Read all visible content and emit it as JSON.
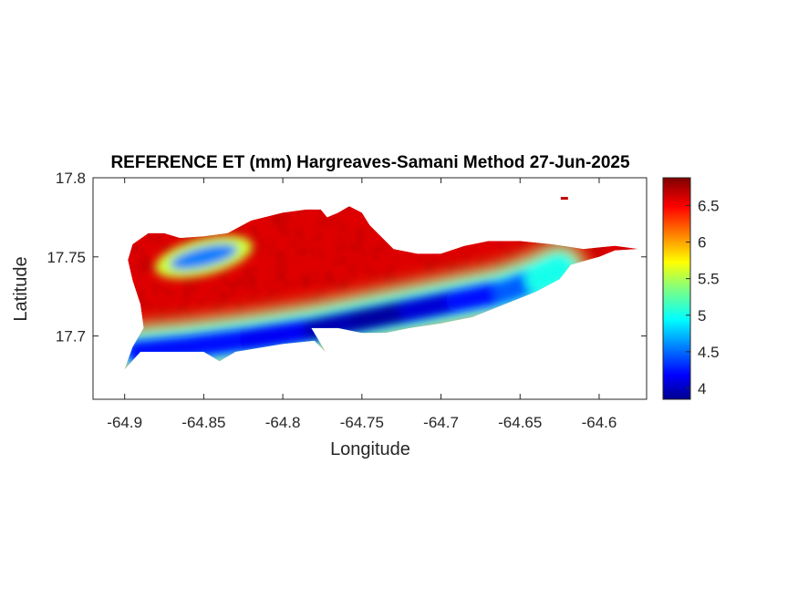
{
  "chart_data": {
    "type": "heatmap",
    "title": "REFERENCE ET (mm) Hargreaves-Samani Method  27-Jun-2025",
    "xlabel": "Longitude",
    "ylabel": "Latitude",
    "xlim": [
      -64.92,
      -64.57
    ],
    "ylim": [
      17.66,
      17.8
    ],
    "xticks": [
      -64.9,
      -64.85,
      -64.8,
      -64.75,
      -64.7,
      -64.65,
      -64.6
    ],
    "xtick_labels": [
      "-64.9",
      "-64.85",
      "-64.8",
      "-64.75",
      "-64.7",
      "-64.65",
      "-64.6"
    ],
    "yticks": [
      17.7,
      17.75,
      17.8
    ],
    "ytick_labels": [
      "17.7",
      "17.75",
      "17.8"
    ],
    "colorbar": {
      "colormap": "jet",
      "clim": [
        3.85,
        6.88
      ],
      "ticks": [
        4,
        4.5,
        5,
        5.5,
        6,
        6.5
      ],
      "tick_labels": [
        "4",
        "4.5",
        "5",
        "5.5",
        "6",
        "6.5"
      ]
    },
    "field": {
      "description_units": "mm",
      "island_outline_lonlat": [
        [
          -64.9,
          17.679
        ],
        [
          -64.89,
          17.69
        ],
        [
          -64.875,
          17.69
        ],
        [
          -64.85,
          17.69
        ],
        [
          -64.84,
          17.684
        ],
        [
          -64.83,
          17.69
        ],
        [
          -64.8,
          17.695
        ],
        [
          -64.78,
          17.697
        ],
        [
          -64.773,
          17.69
        ],
        [
          -64.782,
          17.705
        ],
        [
          -64.765,
          17.705
        ],
        [
          -64.75,
          17.702
        ],
        [
          -64.735,
          17.702
        ],
        [
          -64.72,
          17.705
        ],
        [
          -64.7,
          17.708
        ],
        [
          -64.68,
          17.712
        ],
        [
          -64.66,
          17.72
        ],
        [
          -64.64,
          17.728
        ],
        [
          -64.625,
          17.736
        ],
        [
          -64.618,
          17.745
        ],
        [
          -64.6,
          17.75
        ],
        [
          -64.59,
          17.754
        ],
        [
          -64.575,
          17.755
        ],
        [
          -64.59,
          17.757
        ],
        [
          -64.61,
          17.755
        ],
        [
          -64.63,
          17.758
        ],
        [
          -64.65,
          17.76
        ],
        [
          -64.67,
          17.76
        ],
        [
          -64.685,
          17.757
        ],
        [
          -64.7,
          17.752
        ],
        [
          -64.715,
          17.752
        ],
        [
          -64.73,
          17.755
        ],
        [
          -64.745,
          17.77
        ],
        [
          -64.75,
          17.778
        ],
        [
          -64.758,
          17.782
        ],
        [
          -64.765,
          17.778
        ],
        [
          -64.772,
          17.775
        ],
        [
          -64.776,
          17.78
        ],
        [
          -64.785,
          17.78
        ],
        [
          -64.8,
          17.778
        ],
        [
          -64.82,
          17.773
        ],
        [
          -64.835,
          17.765
        ],
        [
          -64.85,
          17.763
        ],
        [
          -64.865,
          17.762
        ],
        [
          -64.875,
          17.765
        ],
        [
          -64.885,
          17.765
        ],
        [
          -64.895,
          17.758
        ],
        [
          -64.898,
          17.748
        ],
        [
          -64.895,
          17.735
        ],
        [
          -64.89,
          17.72
        ],
        [
          -64.888,
          17.705
        ],
        [
          -64.895,
          17.693
        ],
        [
          -64.9,
          17.679
        ]
      ],
      "islet_lonlat": [
        -64.622,
        17.787
      ],
      "low_band_centerline_lonlat": [
        [
          -64.892,
          17.69
        ],
        [
          -64.86,
          17.693
        ],
        [
          -64.82,
          17.698
        ],
        [
          -64.78,
          17.704
        ],
        [
          -64.75,
          17.71
        ],
        [
          -64.72,
          17.716
        ],
        [
          -64.69,
          17.722
        ],
        [
          -64.66,
          17.728
        ],
        [
          -64.64,
          17.735
        ],
        [
          -64.625,
          17.742
        ]
      ],
      "low_band_values_mm": [
        4.3,
        4.2,
        4.3,
        4.1,
        3.9,
        4.0,
        4.2,
        4.3,
        4.7,
        5.4
      ],
      "north_low_spot_lonlat": [
        -64.85,
        17.75
      ],
      "north_low_spot_value_mm": 4.6,
      "interior_value_mm": 6.6
    }
  }
}
